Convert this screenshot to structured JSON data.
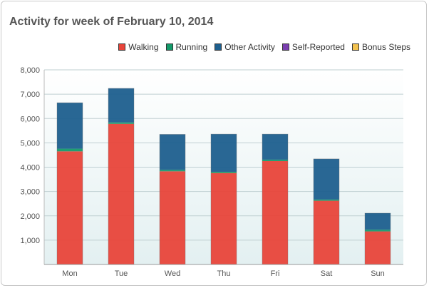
{
  "title": "Activity for week of February 10, 2014",
  "legend": [
    {
      "label": "Walking",
      "color": "#e8443a"
    },
    {
      "label": "Running",
      "color": "#149a6a"
    },
    {
      "label": "Other Activity",
      "color": "#1e5f8e"
    },
    {
      "label": "Self-Reported",
      "color": "#7a3fb0"
    },
    {
      "label": "Bonus Steps",
      "color": "#f2c24f"
    }
  ],
  "chart_data": {
    "type": "bar",
    "stacked": true,
    "title": "Activity for week of February 10, 2014",
    "categories": [
      "Mon",
      "Tue",
      "Wed",
      "Thu",
      "Fri",
      "Sat",
      "Sun"
    ],
    "series": [
      {
        "name": "Walking",
        "color": "#e8443a",
        "values": [
          4650,
          5780,
          3830,
          3760,
          4250,
          2620,
          1360
        ]
      },
      {
        "name": "Running",
        "color": "#149a6a",
        "values": [
          110,
          60,
          60,
          50,
          60,
          50,
          70
        ]
      },
      {
        "name": "Other Activity",
        "color": "#1e5f8e",
        "values": [
          1890,
          1400,
          1460,
          1550,
          1050,
          1670,
          680
        ]
      },
      {
        "name": "Self-Reported",
        "color": "#7a3fb0",
        "values": [
          0,
          0,
          0,
          0,
          0,
          0,
          0
        ]
      },
      {
        "name": "Bonus Steps",
        "color": "#f2c24f",
        "values": [
          0,
          0,
          0,
          0,
          0,
          0,
          0
        ]
      }
    ],
    "yticks": [
      "1,000",
      "2,000",
      "3,000",
      "4,000",
      "5,000",
      "6,000",
      "7,000",
      "8,000"
    ],
    "ylim": [
      0,
      8000
    ],
    "grid": true,
    "legend_position": "top-right"
  }
}
